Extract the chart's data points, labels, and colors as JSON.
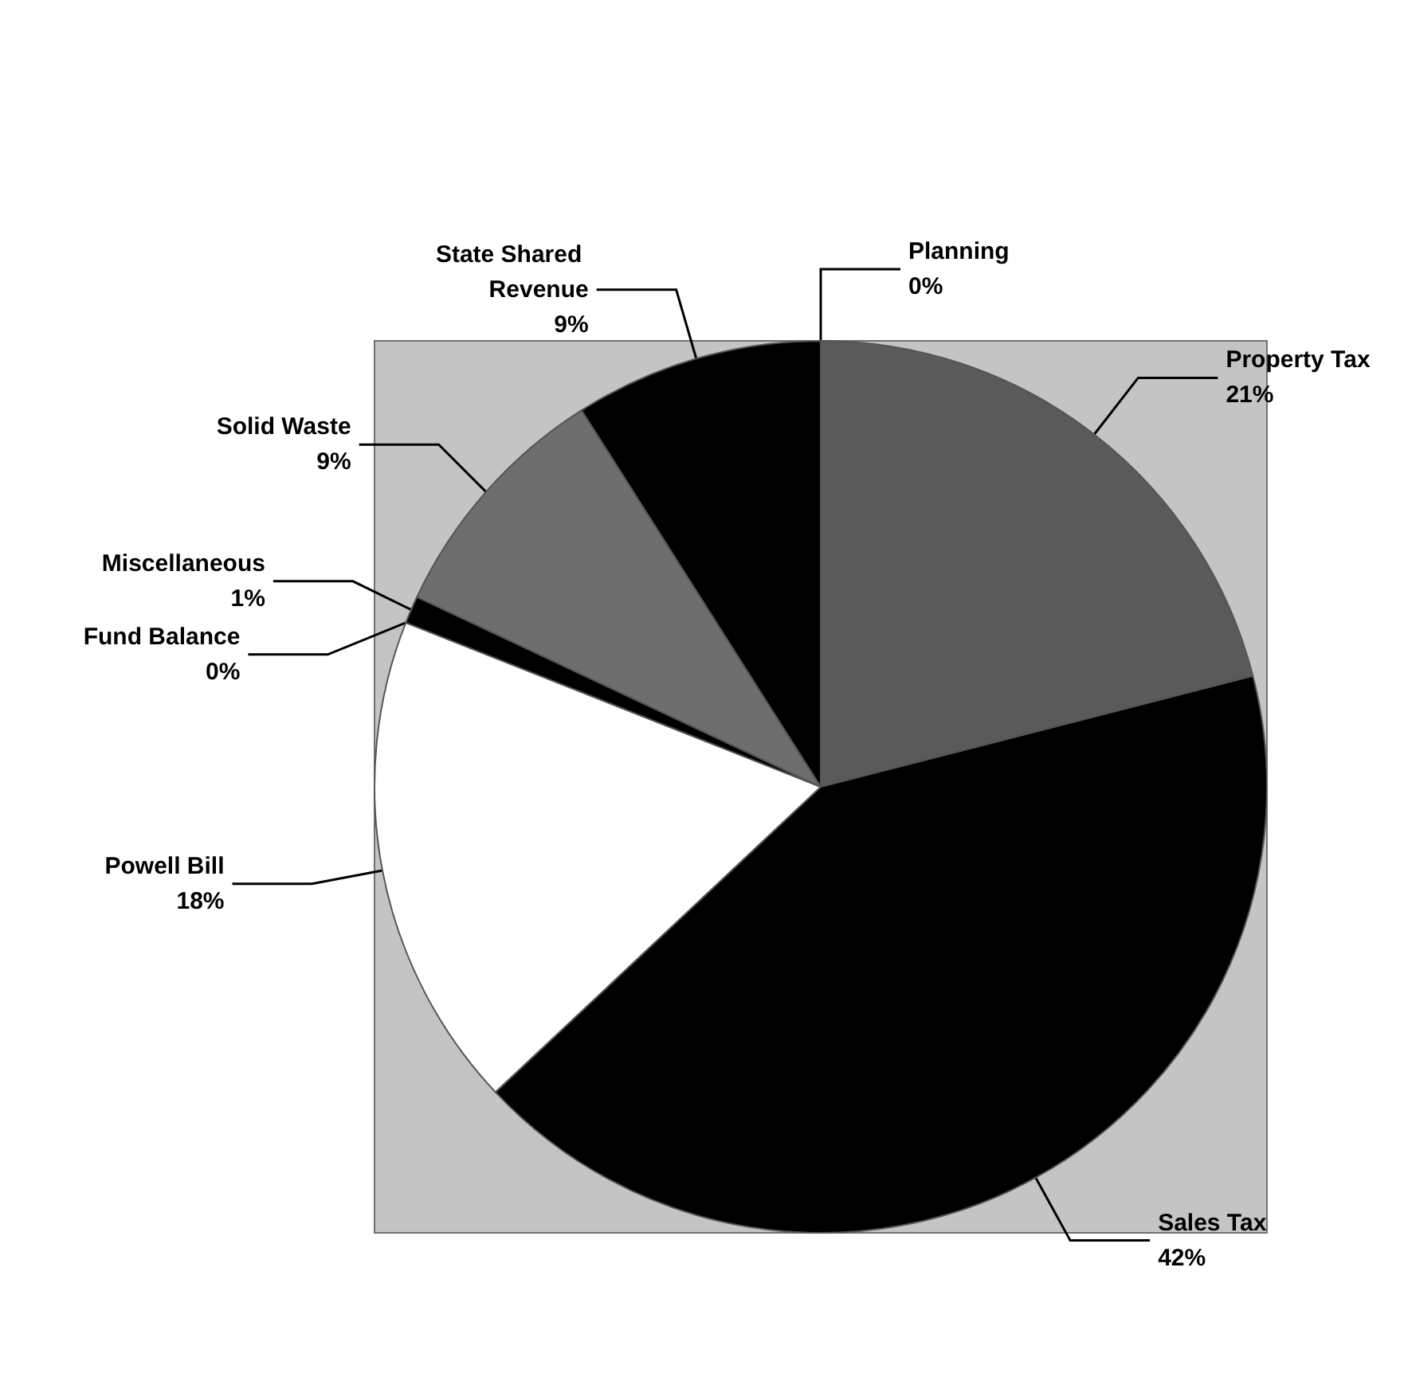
{
  "chart_data": {
    "type": "pie",
    "categories": [
      "Property Tax",
      "Sales Tax",
      "Powell Bill",
      "Fund Balance",
      "Miscellaneous",
      "Solid Waste",
      "State Shared Revenue",
      "Planning"
    ],
    "values": [
      21,
      42,
      18,
      0,
      1,
      9,
      9,
      0
    ],
    "value_labels": [
      "21%",
      "42%",
      "18%",
      "0%",
      "1%",
      "9%",
      "9%",
      "0%"
    ],
    "colors": [
      "#5a5a5a",
      "#000000",
      "#ffffff",
      "#808080",
      "#000000",
      "#6e6e6e",
      "#000000",
      "#303030"
    ],
    "legend": false
  }
}
